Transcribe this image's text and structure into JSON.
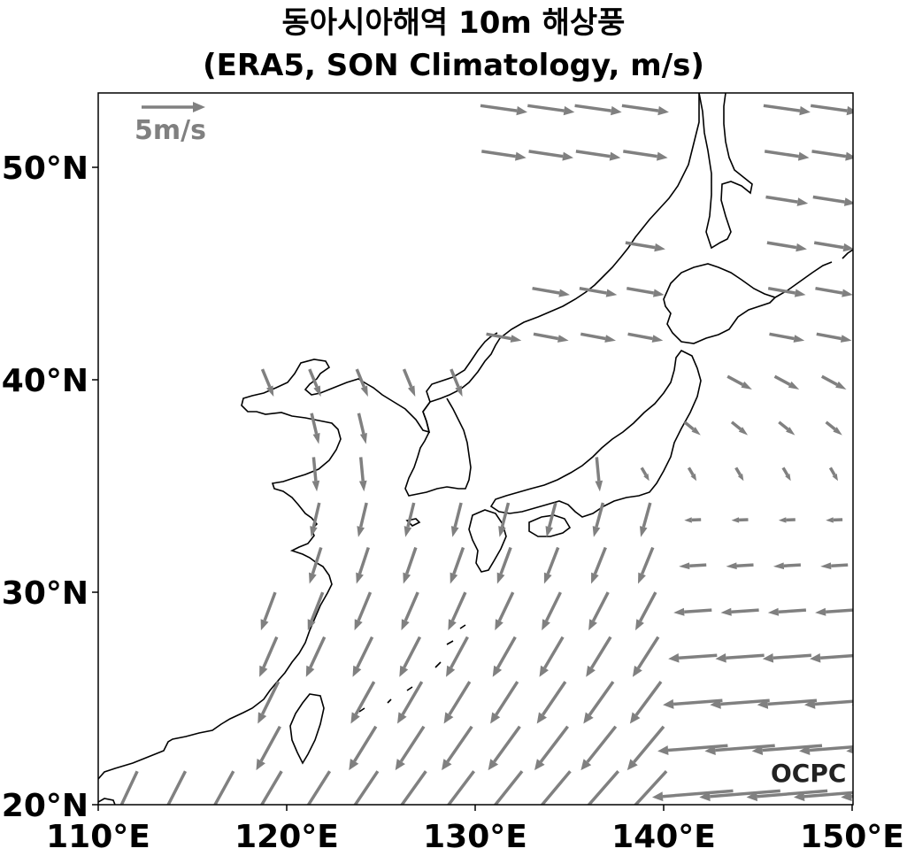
{
  "title": {
    "line1": "동아시아해역 10m 해상풍",
    "line2": "(ERA5, SON Climatology, m/s)"
  },
  "map": {
    "lon_range": [
      110,
      150
    ],
    "lat_range": [
      20,
      53.5
    ],
    "x_ticks": [
      {
        "lon": 110,
        "label": "110°E"
      },
      {
        "lon": 120,
        "label": "120°E"
      },
      {
        "lon": 130,
        "label": "130°E"
      },
      {
        "lon": 140,
        "label": "140°E"
      },
      {
        "lon": 150,
        "label": "150°E"
      }
    ],
    "y_ticks": [
      {
        "lat": 20,
        "label": "20°N"
      },
      {
        "lat": 30,
        "label": "30°N"
      },
      {
        "lat": 40,
        "label": "40°N"
      },
      {
        "lat": 50,
        "label": "50°N"
      }
    ],
    "reference_vector": {
      "speed": 5,
      "label": "5m/s"
    },
    "watermark": "OCPC",
    "vector_color": "#808080",
    "coastline_color": "#000000"
  }
}
